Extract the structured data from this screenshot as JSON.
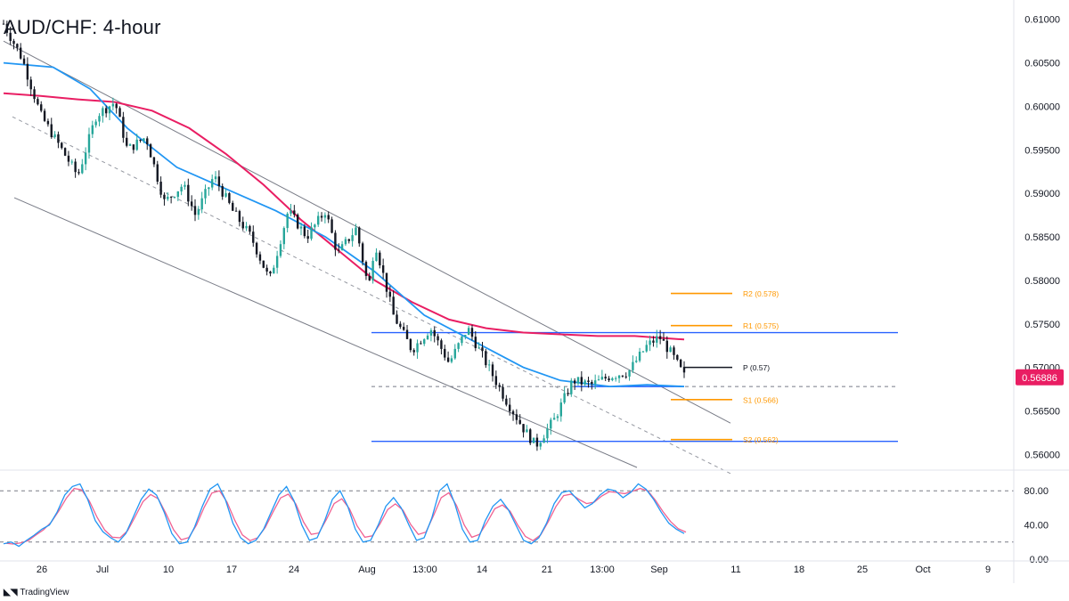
{
  "title": "AUD/CHF: 4-hour",
  "branding": {
    "logo_icon": "tradingview-logo-icon",
    "text": "TradingView"
  },
  "colors": {
    "up": "#26a69a",
    "down": "#131722",
    "sma_fast": "#2196f3",
    "sma_slow": "#e91e63",
    "level_line": "#2962ff",
    "pivot_orange": "#ff9800",
    "pivot_black": "#131722",
    "channel": "#787b86",
    "price_tag": "#e91e63",
    "rsi_k": "#2196f3",
    "rsi_d": "#f06292"
  },
  "chart_data": [
    {
      "type": "candlestick",
      "title": "AUD/CHF: 4-hour",
      "yaxis": {
        "ticks": [
          "0.61000",
          "0.60500",
          "0.60000",
          "0.59500",
          "0.59000",
          "0.58500",
          "0.58000",
          "0.57500",
          "0.57000",
          "0.56500",
          "0.56000"
        ],
        "range": [
          0.5585,
          0.6112
        ]
      },
      "xaxis": {
        "ticks": [
          "26",
          "Jul",
          "10",
          "17",
          "24",
          "Aug",
          "13:00",
          "14",
          "21",
          "13:00",
          "Sep",
          "11",
          "18",
          "25",
          "Oct",
          "9"
        ]
      },
      "last_price": "0.56886",
      "price_path": [
        [
          0,
          0.6095
        ],
        [
          3,
          0.6055
        ],
        [
          6,
          0.599
        ],
        [
          9,
          0.5955
        ],
        [
          12,
          0.592
        ],
        [
          15,
          0.599
        ],
        [
          18,
          0.6005
        ],
        [
          20,
          0.595
        ],
        [
          23,
          0.5965
        ],
        [
          26,
          0.589
        ],
        [
          29,
          0.591
        ],
        [
          31,
          0.5875
        ],
        [
          34,
          0.592
        ],
        [
          37,
          0.588
        ],
        [
          40,
          0.585
        ],
        [
          43,
          0.58
        ],
        [
          46,
          0.588
        ],
        [
          49,
          0.585
        ],
        [
          52,
          0.588
        ],
        [
          54,
          0.583
        ],
        [
          57,
          0.586
        ],
        [
          59,
          0.579
        ],
        [
          60,
          0.5845
        ],
        [
          63,
          0.576
        ],
        [
          66,
          0.572
        ],
        [
          69,
          0.5745
        ],
        [
          72,
          0.5705
        ],
        [
          75,
          0.5745
        ],
        [
          78,
          0.5705
        ],
        [
          81,
          0.5665
        ],
        [
          84,
          0.563
        ],
        [
          86,
          0.561
        ],
        [
          89,
          0.564
        ],
        [
          92,
          0.5685
        ],
        [
          95,
          0.568
        ],
        [
          98,
          0.569
        ],
        [
          101,
          0.5695
        ],
        [
          104,
          0.5725
        ],
        [
          106,
          0.5735
        ],
        [
          108,
          0.5715
        ],
        [
          110,
          0.569
        ]
      ],
      "sma_fast_path": [
        [
          0,
          0.605
        ],
        [
          8,
          0.6045
        ],
        [
          14,
          0.602
        ],
        [
          20,
          0.5975
        ],
        [
          28,
          0.593
        ],
        [
          36,
          0.5905
        ],
        [
          44,
          0.588
        ],
        [
          52,
          0.585
        ],
        [
          60,
          0.581
        ],
        [
          68,
          0.576
        ],
        [
          76,
          0.573
        ],
        [
          84,
          0.57
        ],
        [
          90,
          0.5685
        ],
        [
          98,
          0.5678
        ],
        [
          104,
          0.568
        ],
        [
          110,
          0.5678
        ]
      ],
      "sma_slow_path": [
        [
          0,
          0.6015
        ],
        [
          6,
          0.6012
        ],
        [
          12,
          0.6008
        ],
        [
          18,
          0.6005
        ],
        [
          24,
          0.5995
        ],
        [
          30,
          0.5975
        ],
        [
          36,
          0.5945
        ],
        [
          42,
          0.591
        ],
        [
          48,
          0.587
        ],
        [
          54,
          0.5835
        ],
        [
          60,
          0.58
        ],
        [
          66,
          0.5775
        ],
        [
          72,
          0.5755
        ],
        [
          78,
          0.5745
        ],
        [
          84,
          0.574
        ],
        [
          90,
          0.5738
        ],
        [
          96,
          0.5736
        ],
        [
          102,
          0.5736
        ],
        [
          110,
          0.5732
        ]
      ],
      "horizontal_levels": [
        0.574,
        0.5678,
        0.5615
      ],
      "pivots": [
        {
          "label": "R2 (0.578)",
          "value": 0.5785
        },
        {
          "label": "R1 (0.575)",
          "value": 0.5748
        },
        {
          "label": "P (0.57)",
          "value": 0.57
        },
        {
          "label": "S1 (0.566)",
          "value": 0.5663
        },
        {
          "label": "S2 (0.562)",
          "value": 0.5617
        }
      ],
      "channel": {
        "upper": [
          [
            0,
            0.6075
          ],
          [
            110,
            0.564
          ]
        ],
        "middle": [
          [
            0,
            0.5988
          ],
          [
            110,
            0.558
          ]
        ],
        "lower": [
          [
            0,
            0.5895
          ],
          [
            110,
            0.5527
          ]
        ]
      }
    },
    {
      "type": "line",
      "title": "",
      "yaxis": {
        "ticks": [
          "80.00",
          "40.00",
          "0.00"
        ],
        "range": [
          0,
          100
        ]
      },
      "reference_lines": [
        80,
        20
      ],
      "series": [
        {
          "values": [
            18,
            20,
            15,
            22,
            28,
            35,
            40,
            55,
            75,
            85,
            88,
            70,
            45,
            32,
            25,
            20,
            30,
            50,
            70,
            82,
            75,
            55,
            30,
            18,
            20,
            38,
            62,
            82,
            88,
            70,
            42,
            25,
            18,
            22,
            35,
            55,
            75,
            85,
            68,
            40,
            22,
            25,
            45,
            70,
            80,
            62,
            35,
            20,
            22,
            40,
            62,
            72,
            60,
            40,
            22,
            25,
            48,
            80,
            88,
            65,
            35,
            20,
            22,
            45,
            62,
            70,
            58,
            40,
            22,
            18,
            25,
            42,
            65,
            78,
            80,
            70,
            60,
            65,
            75,
            82,
            80,
            72,
            78,
            88,
            82,
            70,
            55,
            42,
            35,
            30
          ]
        }
      ]
    }
  ]
}
